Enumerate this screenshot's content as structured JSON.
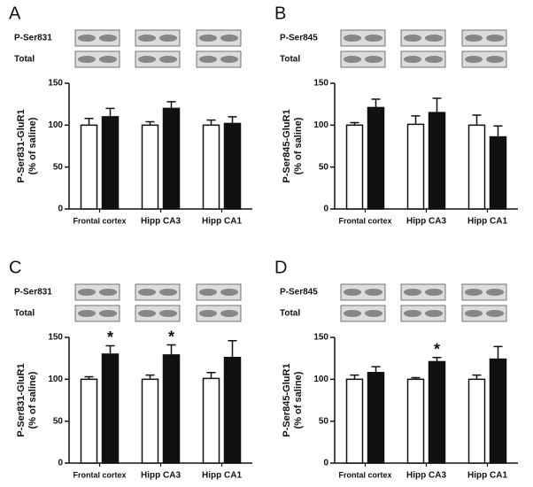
{
  "chart_data": [
    {
      "type": "bar",
      "panel": "A",
      "blot_labels": [
        "P-Ser831",
        "Total"
      ],
      "ylabel": [
        "P-Ser831-GluR1",
        "(% of saline)"
      ],
      "categories": [
        "Frontal cortex",
        "Hipp CA3",
        "Hipp CA1"
      ],
      "series": [
        {
          "color": "#ffffff",
          "values": [
            100,
            100,
            100
          ],
          "errors": [
            8,
            4,
            6
          ]
        },
        {
          "color": "#111111",
          "values": [
            110,
            120,
            102
          ],
          "errors": [
            10,
            8,
            8
          ]
        }
      ],
      "ylim": [
        0,
        150
      ],
      "yticks": [
        0,
        50,
        100,
        150
      ],
      "annotations": []
    },
    {
      "type": "bar",
      "panel": "B",
      "blot_labels": [
        "P-Ser845",
        "Total"
      ],
      "ylabel": [
        "P-Ser845-GluR1",
        "(% of saline)"
      ],
      "categories": [
        "Frontal cortex",
        "Hipp CA3",
        "Hipp CA1"
      ],
      "series": [
        {
          "color": "#ffffff",
          "values": [
            100,
            101,
            100
          ],
          "errors": [
            3,
            10,
            12
          ]
        },
        {
          "color": "#111111",
          "values": [
            121,
            115,
            86
          ],
          "errors": [
            10,
            17,
            13
          ]
        }
      ],
      "ylim": [
        0,
        150
      ],
      "yticks": [
        0,
        50,
        100,
        150
      ],
      "annotations": []
    },
    {
      "type": "bar",
      "panel": "C",
      "blot_labels": [
        "P-Ser831",
        "Total"
      ],
      "ylabel": [
        "P-Ser831-GluR1",
        "(% of saline)"
      ],
      "categories": [
        "Frontal cortex",
        "Hipp CA3",
        "Hipp CA1"
      ],
      "series": [
        {
          "color": "#ffffff",
          "values": [
            100,
            100,
            101
          ],
          "errors": [
            3,
            5,
            7
          ]
        },
        {
          "color": "#111111",
          "values": [
            130,
            129,
            126
          ],
          "errors": [
            10,
            12,
            20
          ]
        }
      ],
      "ylim": [
        0,
        150
      ],
      "yticks": [
        0,
        50,
        100,
        150
      ],
      "annotations": [
        {
          "text": "*",
          "category": 0
        },
        {
          "text": "*",
          "category": 1
        }
      ]
    },
    {
      "type": "bar",
      "panel": "D",
      "blot_labels": [
        "P-Ser845",
        "Total"
      ],
      "ylabel": [
        "P-Ser845-GluR1",
        "(% of saline)"
      ],
      "categories": [
        "Frontal cortex",
        "Hipp CA3",
        "Hipp CA1"
      ],
      "series": [
        {
          "color": "#ffffff",
          "values": [
            100,
            100,
            100
          ],
          "errors": [
            5,
            2,
            5
          ]
        },
        {
          "color": "#111111",
          "values": [
            108,
            121,
            124
          ],
          "errors": [
            7,
            5,
            15
          ]
        }
      ],
      "ylim": [
        0,
        150
      ],
      "yticks": [
        0,
        50,
        100,
        150
      ],
      "annotations": [
        {
          "text": "*",
          "category": 1
        }
      ]
    }
  ]
}
